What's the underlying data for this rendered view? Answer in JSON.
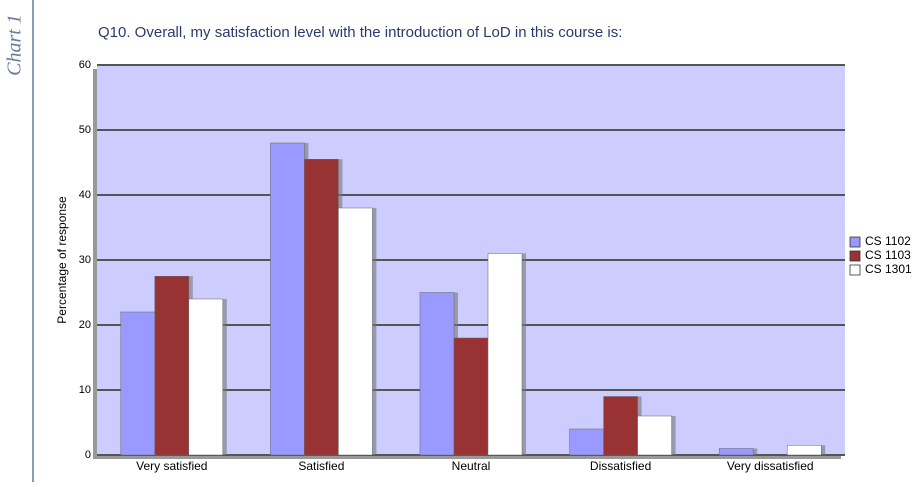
{
  "caption": "Chart 1",
  "chart_data": {
    "type": "bar",
    "title": "Q10. Overall, my satisfaction level with the introduction of LoD in this course is:",
    "y_label": "Percentage of response",
    "categories": [
      "Very satisfied",
      "Satisfied",
      "Neutral",
      "Dissatisfied",
      "Very dissatisfied"
    ],
    "series": [
      {
        "name": "CS 1102",
        "color": "#9999ff",
        "values": [
          22,
          48,
          25,
          4,
          1
        ]
      },
      {
        "name": "CS 1103",
        "color": "#993333",
        "values": [
          27.5,
          45.5,
          18,
          9,
          0
        ]
      },
      {
        "name": "CS 1301",
        "color": "#ffffff",
        "values": [
          24,
          38,
          31,
          6,
          1.5
        ]
      }
    ],
    "ylim": [
      0,
      60
    ],
    "yticks": [
      0,
      10,
      20,
      30,
      40,
      50,
      60
    ],
    "grid": true,
    "legend": "right"
  }
}
